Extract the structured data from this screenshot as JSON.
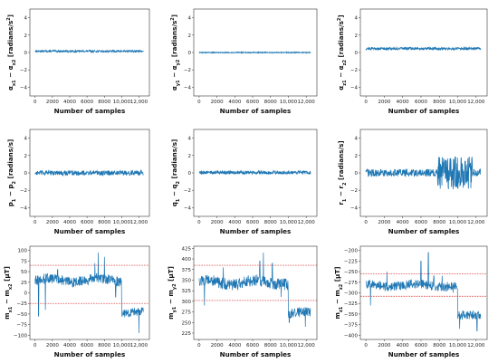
{
  "chart_data": [
    {
      "id": "ax",
      "type": "line",
      "ylabel_html": "α<tspan baseline-shift='sub' font-size='5'>x1</tspan> − α<tspan baseline-shift='sub' font-size='5'>x2</tspan> [radians/s<tspan baseline-shift='super' font-size='5'>2</tspan>]",
      "xlabel": "Number of samples",
      "xlim": [
        -600,
        13200
      ],
      "ylim": [
        -5,
        5
      ],
      "xticks": [
        0,
        2000,
        4000,
        6000,
        8000,
        10000,
        12000
      ],
      "xtick_labels": [
        "0",
        "2000",
        "4000",
        "6000",
        "8000",
        "10,000",
        "12,000"
      ],
      "yticks": [
        -4,
        -2,
        0,
        2,
        4
      ],
      "ytick_labels": [
        "−4",
        "−2",
        "0",
        "2",
        "4"
      ],
      "signal": {
        "n": 12500,
        "base": 0.15,
        "amp": 0.12,
        "color": "#1f77b4"
      }
    },
    {
      "id": "ay",
      "type": "line",
      "ylabel_html": "α<tspan baseline-shift='sub' font-size='5'>y1</tspan> − α<tspan baseline-shift='sub' font-size='5'>y2</tspan> [radians/s<tspan baseline-shift='super' font-size='5'>2</tspan>]",
      "xlabel": "Number of samples",
      "xlim": [
        -600,
        13200
      ],
      "ylim": [
        -5,
        5
      ],
      "xticks": [
        0,
        2000,
        4000,
        6000,
        8000,
        10000,
        12000
      ],
      "xtick_labels": [
        "0",
        "2000",
        "4000",
        "6000",
        "8000",
        "10,000",
        "12,000"
      ],
      "yticks": [
        -4,
        -2,
        0,
        2,
        4
      ],
      "ytick_labels": [
        "−4",
        "−2",
        "0",
        "2",
        "4"
      ],
      "signal": {
        "n": 12500,
        "base": 0.0,
        "amp": 0.06,
        "color": "#1f77b4"
      }
    },
    {
      "id": "az",
      "type": "line",
      "ylabel_html": "α<tspan baseline-shift='sub' font-size='5'>z1</tspan> − α<tspan baseline-shift='sub' font-size='5'>z2</tspan> [radians/s<tspan baseline-shift='super' font-size='5'>2</tspan>]",
      "xlabel": "Number of samples",
      "xlim": [
        -600,
        13200
      ],
      "ylim": [
        -5,
        5
      ],
      "xticks": [
        0,
        2000,
        4000,
        6000,
        8000,
        10000,
        12000
      ],
      "xtick_labels": [
        "0",
        "2000",
        "4000",
        "6000",
        "8000",
        "10,000",
        "12,000"
      ],
      "yticks": [
        -4,
        -2,
        0,
        2,
        4
      ],
      "ytick_labels": [
        "−4",
        "−2",
        "0",
        "2",
        "4"
      ],
      "signal": {
        "n": 12500,
        "base": 0.45,
        "amp": 0.15,
        "color": "#1f77b4"
      }
    },
    {
      "id": "p",
      "type": "line",
      "ylabel_html": "p<tspan baseline-shift='sub' font-size='5'>1</tspan> − p<tspan baseline-shift='sub' font-size='5'>2</tspan> [radians/s]",
      "xlabel": "Number of samples",
      "xlim": [
        -600,
        13200
      ],
      "ylim": [
        -5,
        5
      ],
      "xticks": [
        0,
        2000,
        4000,
        6000,
        8000,
        10000,
        12000
      ],
      "xtick_labels": [
        "0",
        "2000",
        "4000",
        "6000",
        "8000",
        "10,000",
        "12,000"
      ],
      "yticks": [
        -4,
        -2,
        0,
        2,
        4
      ],
      "ytick_labels": [
        "−4",
        "−2",
        "0",
        "2",
        "4"
      ],
      "signal": {
        "n": 12500,
        "base": 0.0,
        "amp": 0.28,
        "color": "#1f77b4"
      }
    },
    {
      "id": "q",
      "type": "line",
      "ylabel_html": "q<tspan baseline-shift='sub' font-size='5'>1</tspan> − q<tspan baseline-shift='sub' font-size='5'>2</tspan> [radians/s]",
      "xlabel": "Number of samples",
      "xlim": [
        -600,
        13200
      ],
      "ylim": [
        -5,
        5
      ],
      "xticks": [
        0,
        2000,
        4000,
        6000,
        8000,
        10000,
        12000
      ],
      "xtick_labels": [
        "0",
        "2000",
        "4000",
        "6000",
        "8000",
        "10,000",
        "12,000"
      ],
      "yticks": [
        -4,
        -2,
        0,
        2,
        4
      ],
      "ytick_labels": [
        "−4",
        "−2",
        "0",
        "2",
        "4"
      ],
      "signal": {
        "n": 12500,
        "base": 0.05,
        "amp": 0.2,
        "color": "#1f77b4"
      }
    },
    {
      "id": "r",
      "type": "line",
      "ylabel_html": "r<tspan baseline-shift='sub' font-size='5'>1</tspan> − r<tspan baseline-shift='sub' font-size='5'>2</tspan> [radians/s]",
      "xlabel": "Number of samples",
      "xlim": [
        -600,
        13200
      ],
      "ylim": [
        -5,
        5
      ],
      "xticks": [
        0,
        2000,
        4000,
        6000,
        8000,
        10000,
        12000
      ],
      "xtick_labels": [
        "0",
        "2000",
        "4000",
        "6000",
        "8000",
        "10,000",
        "12,000"
      ],
      "yticks": [
        -4,
        -2,
        0,
        2,
        4
      ],
      "ytick_labels": [
        "−4",
        "−2",
        "0",
        "2",
        "4"
      ],
      "signal": {
        "n": 12500,
        "base": 0.0,
        "amp": 0.45,
        "burst": [
          [
            7800,
            11600,
            1.9
          ]
        ],
        "color": "#1f77b4"
      }
    },
    {
      "id": "mx",
      "type": "line",
      "ylabel_html": "m<tspan baseline-shift='sub' font-size='5'>x1</tspan> − m<tspan baseline-shift='sub' font-size='5'>x2</tspan> [μT]",
      "xlabel": "Number of samples",
      "xlim": [
        -600,
        13200
      ],
      "ylim": [
        -110,
        110
      ],
      "xticks": [
        0,
        2000,
        4000,
        6000,
        8000,
        10000,
        12000
      ],
      "xtick_labels": [
        "0",
        "2000",
        "4000",
        "6000",
        "8000",
        "10,000",
        "12,000"
      ],
      "yticks": [
        -100,
        -75,
        -50,
        -25,
        0,
        25,
        50,
        75,
        100
      ],
      "ytick_labels": [
        "−100",
        "−75",
        "−50",
        "−25",
        "0",
        "25",
        "50",
        "75",
        "100"
      ],
      "hlines": [
        65,
        -25
      ],
      "signal": {
        "n": 12500,
        "segments": [
          [
            0,
            10000,
            30,
            12
          ],
          [
            10000,
            12500,
            -45,
            10
          ]
        ],
        "spikes": [
          [
            400,
            -55
          ],
          [
            1200,
            -40
          ],
          [
            2600,
            55
          ],
          [
            6900,
            70
          ],
          [
            7300,
            95
          ],
          [
            8000,
            85
          ],
          [
            9300,
            -10
          ],
          [
            10300,
            -40
          ],
          [
            12000,
            -95
          ]
        ],
        "color": "#1f77b4"
      }
    },
    {
      "id": "my",
      "type": "line",
      "ylabel_html": "m<tspan baseline-shift='sub' font-size='5'>y1</tspan> − m<tspan baseline-shift='sub' font-size='5'>y2</tspan> [μT]",
      "xlabel": "Number of samples",
      "xlim": [
        -600,
        13200
      ],
      "ylim": [
        210,
        430
      ],
      "xticks": [
        0,
        2000,
        4000,
        6000,
        8000,
        10000,
        12000
      ],
      "xtick_labels": [
        "0",
        "2000",
        "4000",
        "6000",
        "8000",
        "10,000",
        "12,000"
      ],
      "yticks": [
        225,
        250,
        275,
        300,
        325,
        350,
        375,
        400,
        425
      ],
      "ytick_labels": [
        "225",
        "250",
        "275",
        "300",
        "325",
        "350",
        "375",
        "400",
        "425"
      ],
      "hlines": [
        385,
        302
      ],
      "signal": {
        "n": 12500,
        "segments": [
          [
            0,
            10000,
            345,
            14
          ],
          [
            10000,
            12500,
            272,
            12
          ]
        ],
        "spikes": [
          [
            600,
            290
          ],
          [
            2700,
            380
          ],
          [
            6800,
            395
          ],
          [
            7200,
            415
          ],
          [
            8200,
            390
          ],
          [
            9200,
            310
          ],
          [
            10100,
            250
          ],
          [
            11900,
            240
          ]
        ],
        "color": "#1f77b4"
      }
    },
    {
      "id": "mz",
      "type": "line",
      "ylabel_html": "m<tspan baseline-shift='sub' font-size='5'>z1</tspan> − m<tspan baseline-shift='sub' font-size='5'>z2</tspan> [μT]",
      "xlabel": "Number of samples",
      "xlim": [
        -600,
        13200
      ],
      "ylim": [
        -410,
        -190
      ],
      "xticks": [
        0,
        2000,
        4000,
        6000,
        8000,
        10000,
        12000
      ],
      "xtick_labels": [
        "0",
        "2000",
        "4000",
        "6000",
        "8000",
        "10,000",
        "12,000"
      ],
      "yticks": [
        -400,
        -375,
        -350,
        -325,
        -300,
        -275,
        -250,
        -225,
        -200
      ],
      "ytick_labels": [
        "−400",
        "−375",
        "−350",
        "−325",
        "−300",
        "−275",
        "−250",
        "−225",
        "−200"
      ],
      "hlines": [
        -255,
        -308
      ],
      "signal": {
        "n": 12500,
        "segments": [
          [
            0,
            10000,
            -282,
            11
          ],
          [
            10000,
            12500,
            -355,
            11
          ]
        ],
        "spikes": [
          [
            500,
            -330
          ],
          [
            2300,
            -250
          ],
          [
            6000,
            -225
          ],
          [
            6800,
            -205
          ],
          [
            7400,
            -260
          ],
          [
            8300,
            -260
          ],
          [
            9500,
            -300
          ],
          [
            10200,
            -385
          ],
          [
            12100,
            -390
          ]
        ],
        "color": "#1f77b4"
      }
    }
  ]
}
